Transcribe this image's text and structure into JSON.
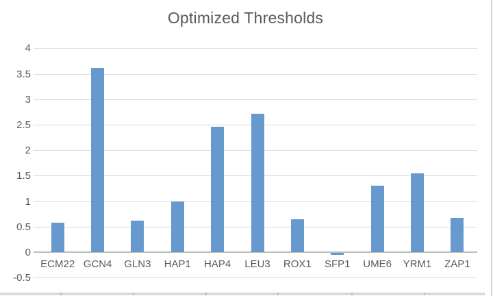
{
  "chart_data": {
    "type": "bar",
    "title": "Optimized Thresholds",
    "categories": [
      "ECM22",
      "GCN4",
      "GLN3",
      "HAP1",
      "HAP4",
      "LEU3",
      "ROX1",
      "SFP1",
      "UME6",
      "YRM1",
      "ZAP1"
    ],
    "values": [
      0.58,
      3.61,
      0.62,
      0.99,
      2.46,
      2.72,
      0.64,
      -0.04,
      1.3,
      1.54,
      0.67
    ],
    "xlabel": "",
    "ylabel": "",
    "ylim": [
      -0.5,
      4
    ],
    "ytick_step": 0.5,
    "ytick_labels": [
      "4",
      "3.5",
      "3",
      "2.5",
      "2",
      "1.5",
      "1",
      "0.5",
      "0",
      "-0.5"
    ],
    "grid": true,
    "legend": "none",
    "colors": {
      "bar_fill": "#6899ce",
      "gridline": "#d9d9d9",
      "axis_line": "#bdbdbd",
      "text": "#595959"
    }
  }
}
